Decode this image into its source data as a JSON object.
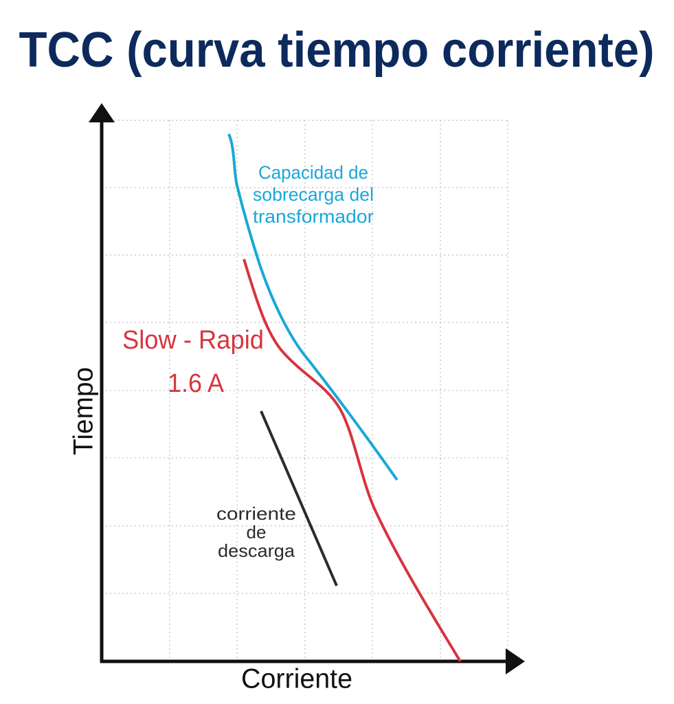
{
  "title": "TCC (curva tiempo corriente)",
  "axes": {
    "y_label": "Tiempo",
    "x_label": "Corriente"
  },
  "curves": [
    {
      "label": [
        "Capacidad de",
        "sobrecarga del",
        "transformador"
      ]
    },
    {
      "label": [
        "Slow - Rapid",
        "1.6 A"
      ]
    },
    {
      "label": [
        "corriente",
        "de",
        "descarga"
      ]
    }
  ]
}
